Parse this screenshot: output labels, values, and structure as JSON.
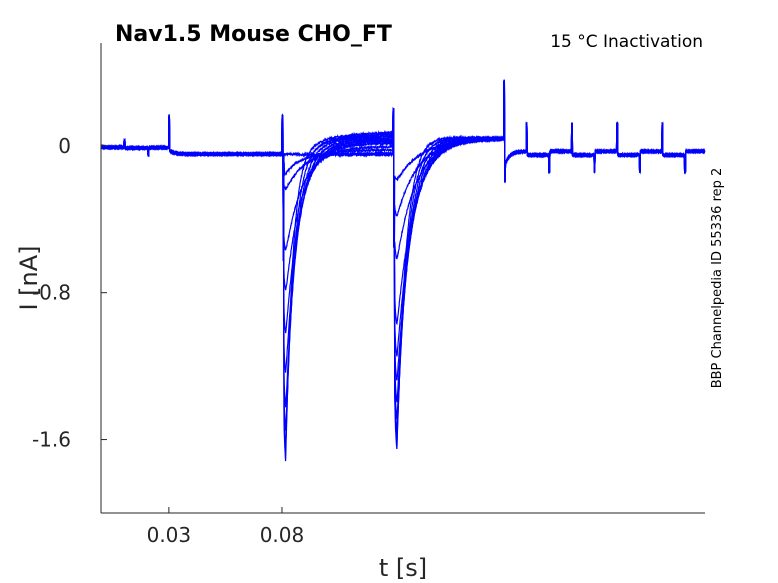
{
  "chart_data": {
    "type": "line",
    "title": "Nav1.5  Mouse  CHO_FT",
    "subtitle": "15 °C  Inactivation",
    "side_note": "BBP Channelpedia ID 55336 rep 2",
    "xlabel": "t [s]",
    "ylabel": "I [nA]",
    "xlim": [
      0.0,
      0.267
    ],
    "ylim": [
      -2.0,
      0.56
    ],
    "xticks": [
      {
        "v": 0.03,
        "label": "0.03"
      },
      {
        "v": 0.08,
        "label": "0.08"
      }
    ],
    "yticks": [
      {
        "v": 0,
        "label": "0"
      },
      {
        "v": -0.8,
        "label": "-0.8"
      },
      {
        "v": -1.6,
        "label": "-1.6"
      }
    ],
    "grid": false,
    "color": "#0000ff",
    "protocol": {
      "pulse1_start": 0.08,
      "pulse2_start": 0.129,
      "pulse2_end": 0.178,
      "tail_steps": [
        0.188,
        0.198,
        0.208,
        0.218,
        0.228,
        0.238,
        0.248,
        0.258
      ]
    },
    "sweeps": {
      "pulse1_peak": [
        -1.75,
        -1.68,
        -1.58,
        -1.45,
        -1.25,
        -1.02,
        -0.78,
        -0.55,
        -0.2,
        -0.06,
        0.0
      ],
      "pulse1_end_level": [
        0.08,
        0.07,
        0.06,
        0.05,
        0.04,
        0.03,
        0.02,
        0.0,
        -0.02,
        -0.04,
        -0.05
      ],
      "pulse2_peak": [
        -1.77,
        -1.72,
        -1.66,
        -1.58,
        -1.48,
        -1.35,
        -1.2,
        -1.0,
        -0.62,
        -0.36,
        -0.15
      ]
    }
  }
}
